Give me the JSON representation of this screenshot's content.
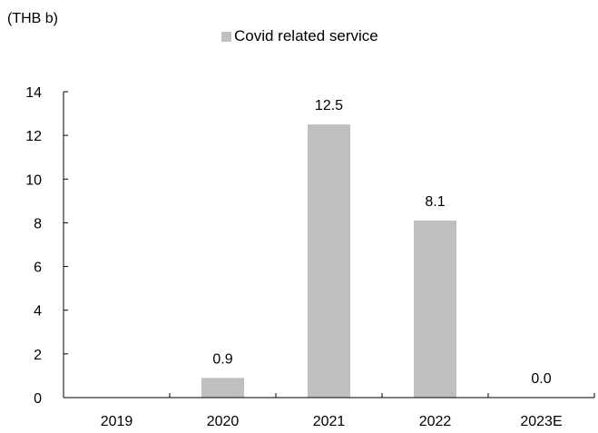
{
  "chart_data": {
    "type": "bar",
    "unit_label": "(THB b)",
    "categories": [
      "2019",
      "2020",
      "2021",
      "2022",
      "2023E"
    ],
    "series": [
      {
        "name": "Covid related service",
        "values": [
          0,
          0.9,
          12.5,
          8.1,
          0.0
        ],
        "data_labels": [
          "",
          "0.9",
          "12.5",
          "8.1",
          "0.0"
        ],
        "color": "#bfbfbf"
      }
    ],
    "ylim": [
      0,
      14
    ],
    "yticks": [
      0,
      2,
      4,
      6,
      8,
      10,
      12,
      14
    ],
    "grid": false,
    "legend_position": "top-center"
  }
}
